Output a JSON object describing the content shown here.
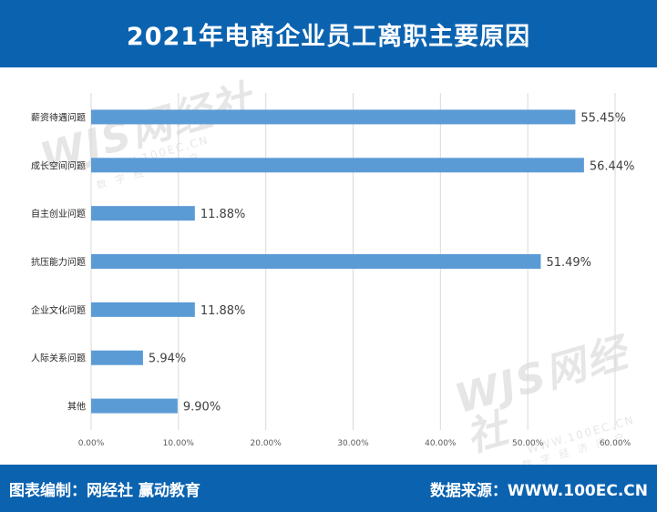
{
  "header": {
    "title": "2021年电商企业员工离职主要原因"
  },
  "watermark": {
    "logo": "WJS网经社",
    "url": "WWW.100EC.CN",
    "sub": "数字经济门户"
  },
  "footer": {
    "left": "图表编制：网经社  赢动教育",
    "right": "数据来源：WWW.100EC.CN"
  },
  "colors": {
    "brand": "#0b63b0",
    "bar": "#5b9bd5",
    "grid": "#d9d9d9"
  },
  "chart_data": {
    "type": "bar",
    "orientation": "horizontal",
    "categories": [
      "薪资待遇问题",
      "成长空间问题",
      "自主创业问题",
      "抗压能力问题",
      "企业文化问题",
      "人际关系问题",
      "其他"
    ],
    "values": [
      55.45,
      56.44,
      11.88,
      51.49,
      11.88,
      5.94,
      9.9
    ],
    "data_labels": [
      "55.45%",
      "56.44%",
      "11.88%",
      "51.49%",
      "11.88%",
      "5.94%",
      "9.90%"
    ],
    "x_ticks": [
      "0.00%",
      "10.00%",
      "20.00%",
      "30.00%",
      "40.00%",
      "50.00%",
      "60.00%"
    ],
    "xlim": [
      0,
      60
    ],
    "grid": true,
    "title": "2021年电商企业员工离职主要原因",
    "xlabel": "",
    "ylabel": ""
  }
}
